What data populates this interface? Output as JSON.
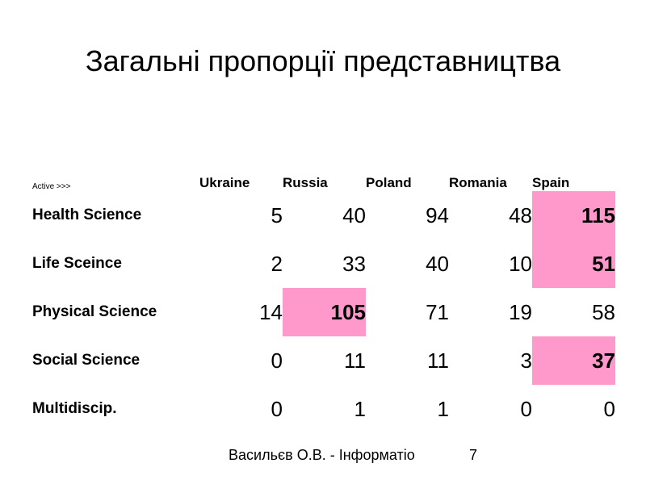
{
  "slide": {
    "title": "Загальні пропорції представництва",
    "footer": "Васильєв О.В. - Інформатіо",
    "page_number": "7"
  },
  "table": {
    "corner_label": "Active >>>",
    "columns": [
      "Ukraine",
      "Russia",
      "Poland",
      "Romania",
      "Spain"
    ],
    "highlight_color": "#ff99cc",
    "rows": [
      {
        "label": "Health Science",
        "values": [
          "5",
          "40",
          "94",
          "48",
          "115"
        ],
        "highlighted": [
          false,
          false,
          false,
          false,
          true
        ]
      },
      {
        "label": "Life Sceince",
        "values": [
          "2",
          "33",
          "40",
          "10",
          "51"
        ],
        "highlighted": [
          false,
          false,
          false,
          false,
          true
        ]
      },
      {
        "label": "Physical Science",
        "values": [
          "14",
          "105",
          "71",
          "19",
          "58"
        ],
        "highlighted": [
          false,
          true,
          false,
          false,
          false
        ]
      },
      {
        "label": "Social Science",
        "values": [
          "0",
          "11",
          "11",
          "3",
          "37"
        ],
        "highlighted": [
          false,
          false,
          false,
          false,
          true
        ]
      },
      {
        "label": "Multidiscip.",
        "values": [
          "0",
          "1",
          "1",
          "0",
          "0"
        ],
        "highlighted": [
          false,
          false,
          false,
          false,
          false
        ]
      }
    ]
  }
}
